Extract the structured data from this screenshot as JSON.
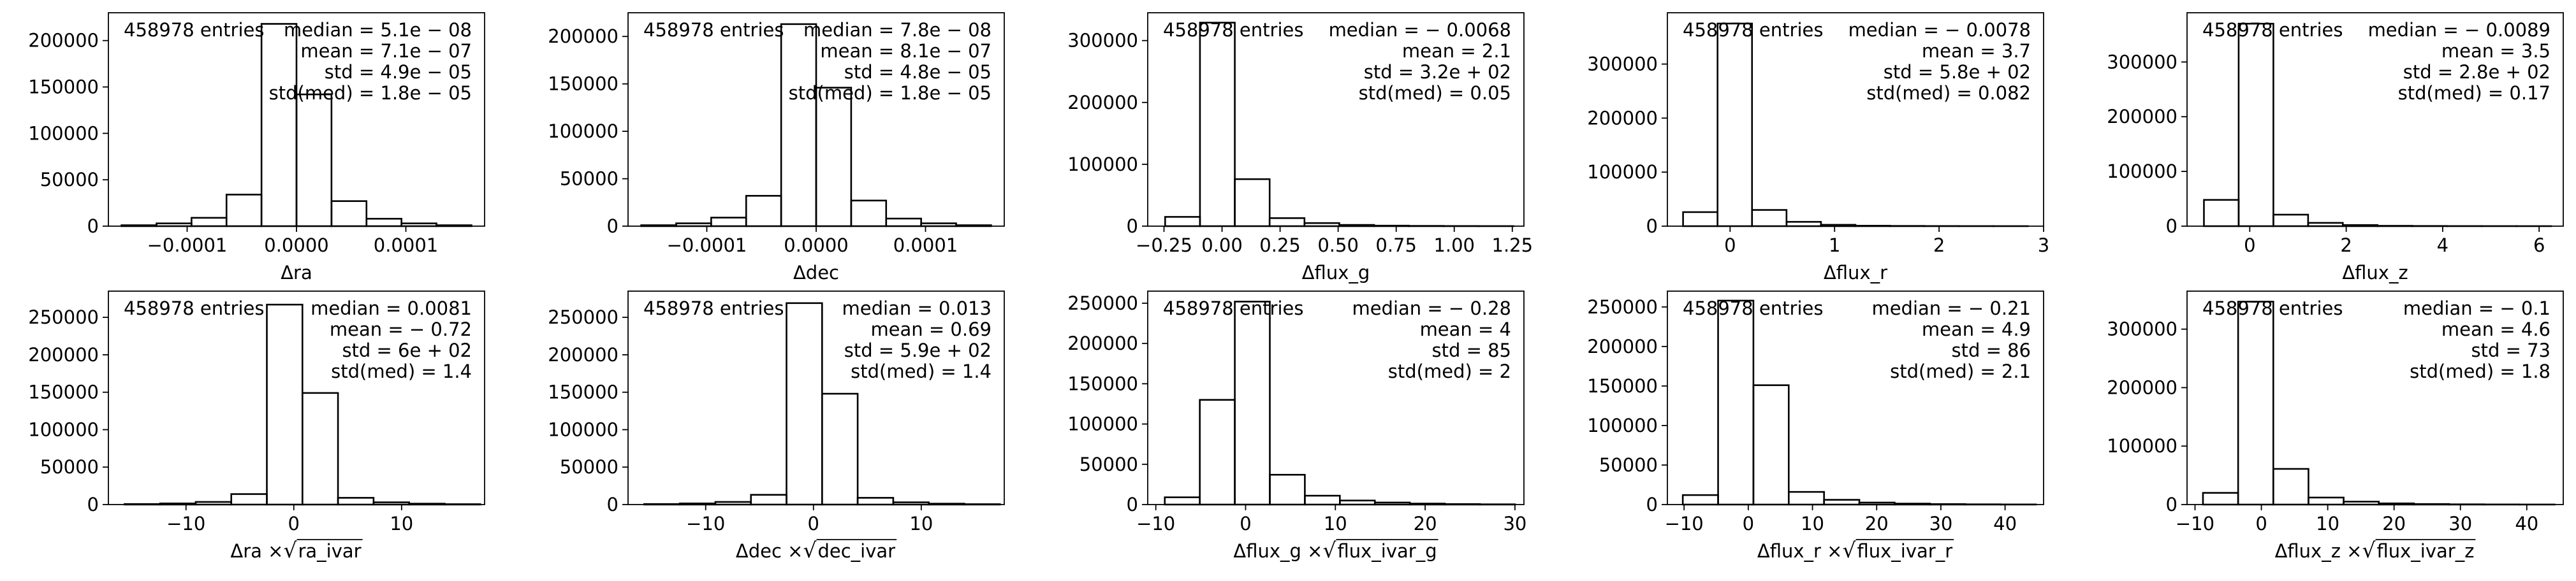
{
  "chart_data": [
    {
      "type": "histogram",
      "xlabel": "Δra",
      "xticks": [
        "−0.0001",
        "0.0000",
        "0.0001"
      ],
      "xtick_values": [
        -0.0001,
        0.0,
        0.0001
      ],
      "xlim": [
        -0.000172,
        0.000172
      ],
      "yticks": [
        "0",
        "50000",
        "100000",
        "150000",
        "200000"
      ],
      "ytick_values": [
        0,
        50000,
        100000,
        150000,
        200000
      ],
      "ylim": [
        0,
        230000
      ],
      "bin_edges": [
        -0.00016,
        -0.000128,
        -9.6e-05,
        -6.4e-05,
        -3.2e-05,
        0.0,
        3.2e-05,
        6.4e-05,
        9.6e-05,
        0.000128,
        0.00016
      ],
      "counts": [
        1000,
        3000,
        9000,
        34000,
        218000,
        142000,
        27000,
        8000,
        3000,
        1000
      ],
      "entries": "458978 entries",
      "stats": [
        "median = 5.1e − 08",
        "mean = 7.1e − 07",
        "std = 4.9e − 05",
        "std(med) = 1.8e − 05"
      ]
    },
    {
      "type": "histogram",
      "xlabel": "Δdec",
      "xticks": [
        "−0.0001",
        "0.0000",
        "0.0001"
      ],
      "xtick_values": [
        -0.0001,
        0.0,
        0.0001
      ],
      "xlim": [
        -0.000172,
        0.000172
      ],
      "yticks": [
        "0",
        "50000",
        "100000",
        "150000",
        "200000"
      ],
      "ytick_values": [
        0,
        50000,
        100000,
        150000,
        200000
      ],
      "ylim": [
        0,
        225000
      ],
      "bin_edges": [
        -0.00016,
        -0.000128,
        -9.6e-05,
        -6.4e-05,
        -3.2e-05,
        0.0,
        3.2e-05,
        6.4e-05,
        9.6e-05,
        0.000128,
        0.00016
      ],
      "counts": [
        1000,
        3000,
        9000,
        32000,
        213000,
        146000,
        27000,
        8000,
        3000,
        1000
      ],
      "entries": "458978 entries",
      "stats": [
        "median = 7.8e − 08",
        "mean = 8.1e − 07",
        "std = 4.8e − 05",
        "std(med) = 1.8e − 05"
      ]
    },
    {
      "type": "histogram",
      "xlabel": "Δflux_g",
      "xticks": [
        "−0.25",
        "0.00",
        "0.25",
        "0.50",
        "0.75",
        "1.00",
        "1.25"
      ],
      "xtick_values": [
        -0.25,
        0.0,
        0.25,
        0.5,
        0.75,
        1.0,
        1.25
      ],
      "xlim": [
        -0.32,
        1.3
      ],
      "yticks": [
        "0",
        "100000",
        "200000",
        "300000"
      ],
      "ytick_values": [
        0,
        100000,
        200000,
        300000
      ],
      "ylim": [
        0,
        345000
      ],
      "bin_edges": [
        -0.245,
        -0.095,
        0.055,
        0.205,
        0.355,
        0.505,
        0.655,
        0.805,
        0.955,
        1.105,
        1.255
      ],
      "counts": [
        15000,
        329000,
        76000,
        13000,
        5000,
        2000,
        800,
        400,
        200,
        100
      ],
      "entries": "458978 entries",
      "stats": [
        "median = − 0.0068",
        "mean = 2.1",
        "std = 3.2e + 02",
        "std(med) = 0.05"
      ]
    },
    {
      "type": "histogram",
      "xlabel": "Δflux_r",
      "xticks": [
        "0",
        "1",
        "2",
        "3"
      ],
      "xtick_values": [
        0,
        1,
        2,
        3
      ],
      "xlim": [
        -0.6,
        3.0
      ],
      "yticks": [
        "0",
        "100000",
        "200000",
        "300000"
      ],
      "ytick_values": [
        0,
        100000,
        200000,
        300000
      ],
      "ylim": [
        0,
        395000
      ],
      "bin_edges": [
        -0.45,
        -0.12,
        0.21,
        0.54,
        0.87,
        1.2,
        1.53,
        1.86,
        2.19,
        2.52,
        2.85
      ],
      "counts": [
        26000,
        375000,
        30000,
        8000,
        2500,
        800,
        400,
        200,
        100,
        50
      ],
      "entries": "458978 entries",
      "stats": [
        "median = − 0.0078",
        "mean = 3.7",
        "std = 5.8e + 02",
        "std(med) = 0.082"
      ]
    },
    {
      "type": "histogram",
      "xlabel": "Δflux_z",
      "xticks": [
        "0",
        "2",
        "4",
        "6"
      ],
      "xtick_values": [
        0,
        2,
        4,
        6
      ],
      "xlim": [
        -1.3,
        6.5
      ],
      "yticks": [
        "0",
        "100000",
        "200000",
        "300000"
      ],
      "ytick_values": [
        0,
        100000,
        200000,
        300000
      ],
      "ylim": [
        0,
        390000
      ],
      "bin_edges": [
        -0.95,
        -0.23,
        0.49,
        1.21,
        1.93,
        2.65,
        3.37,
        4.09,
        4.81,
        5.53,
        6.25
      ],
      "counts": [
        48000,
        370000,
        21000,
        6000,
        2000,
        600,
        300,
        150,
        80,
        40
      ],
      "entries": "458978 entries",
      "stats": [
        "median = − 0.0089",
        "mean = 3.5",
        "std = 2.8e + 02",
        "std(med) = 0.17"
      ]
    },
    {
      "type": "histogram",
      "xlabel": "Δra × √ra_ivar",
      "xticks": [
        "−10",
        "0",
        "10"
      ],
      "xtick_values": [
        -10,
        0,
        10
      ],
      "xlim": [
        -17.2,
        17.7
      ],
      "yticks": [
        "0",
        "50000",
        "100000",
        "150000",
        "200000",
        "250000"
      ],
      "ytick_values": [
        0,
        50000,
        100000,
        150000,
        200000,
        250000
      ],
      "ylim": [
        0,
        285000
      ],
      "bin_edges": [
        -15.7,
        -12.4,
        -9.1,
        -5.8,
        -2.5,
        0.8,
        4.1,
        7.4,
        10.7,
        14.0,
        17.3
      ],
      "counts": [
        700,
        1500,
        3500,
        14000,
        267000,
        149000,
        9000,
        3000,
        1200,
        500
      ],
      "entries": "458978 entries",
      "stats": [
        "median = 0.0081",
        "mean = − 0.72",
        "std = 6e + 02",
        "std(med) = 1.4"
      ]
    },
    {
      "type": "histogram",
      "xlabel": "Δdec × √dec_ivar",
      "xticks": [
        "−10",
        "0",
        "10"
      ],
      "xtick_values": [
        -10,
        0,
        10
      ],
      "xlim": [
        -17.2,
        17.7
      ],
      "yticks": [
        "0",
        "50000",
        "100000",
        "150000",
        "200000",
        "250000"
      ],
      "ytick_values": [
        0,
        50000,
        100000,
        150000,
        200000,
        250000
      ],
      "ylim": [
        0,
        285000
      ],
      "bin_edges": [
        -15.7,
        -12.4,
        -9.1,
        -5.8,
        -2.5,
        0.8,
        4.1,
        7.4,
        10.7,
        14.0,
        17.3
      ],
      "counts": [
        700,
        1500,
        3500,
        13000,
        269000,
        148000,
        9000,
        3000,
        1200,
        500
      ],
      "entries": "458978 entries",
      "stats": [
        "median = 0.013",
        "mean = 0.69",
        "std = 5.9e + 02",
        "std(med) = 1.4"
      ]
    },
    {
      "type": "histogram",
      "xlabel": "Δflux_g × √flux_ivar_g",
      "xticks": [
        "−10",
        "0",
        "10",
        "20",
        "30"
      ],
      "xtick_values": [
        -10,
        0,
        10,
        20,
        30
      ],
      "xlim": [
        -10.9,
        31.0
      ],
      "yticks": [
        "0",
        "50000",
        "100000",
        "150000",
        "200000",
        "250000"
      ],
      "ytick_values": [
        0,
        50000,
        100000,
        150000,
        200000,
        250000
      ],
      "ylim": [
        0,
        265000
      ],
      "bin_edges": [
        -9.0,
        -5.1,
        -1.2,
        2.7,
        6.6,
        10.5,
        14.4,
        18.3,
        22.2,
        26.1,
        30.0
      ],
      "counts": [
        9000,
        130000,
        252000,
        37000,
        11000,
        5000,
        2500,
        1200,
        600,
        300
      ],
      "entries": "458978 entries",
      "stats": [
        "median = − 0.28",
        "mean = 4",
        "std = 85",
        "std(med) = 2"
      ]
    },
    {
      "type": "histogram",
      "xlabel": "Δflux_r × √flux_ivar_r",
      "xticks": [
        "−10",
        "0",
        "10",
        "20",
        "30",
        "40"
      ],
      "xtick_values": [
        -10,
        0,
        10,
        20,
        30,
        40
      ],
      "xlim": [
        -12.6,
        46.0
      ],
      "yticks": [
        "0",
        "50000",
        "100000",
        "150000",
        "200000",
        "250000"
      ],
      "ytick_values": [
        0,
        50000,
        100000,
        150000,
        200000,
        250000
      ],
      "ylim": [
        0,
        270000
      ],
      "bin_edges": [
        -10.2,
        -4.7,
        0.8,
        6.3,
        11.8,
        17.3,
        22.8,
        28.3,
        33.8,
        39.3,
        44.8
      ],
      "counts": [
        12000,
        258000,
        151000,
        16000,
        6000,
        2500,
        1200,
        600,
        300,
        150
      ],
      "entries": "458978 entries",
      "stats": [
        "median = − 0.21",
        "mean = 4.9",
        "std = 86",
        "std(med) = 2.1"
      ]
    },
    {
      "type": "histogram",
      "xlabel": "Δflux_z × √flux_ivar_z",
      "xticks": [
        "−10",
        "0",
        "10",
        "20",
        "30",
        "40"
      ],
      "xtick_values": [
        -10,
        0,
        10,
        20,
        30,
        40
      ],
      "xlim": [
        -11.2,
        45.5
      ],
      "yticks": [
        "0",
        "100000",
        "200000",
        "300000"
      ],
      "ytick_values": [
        0,
        100000,
        200000,
        300000
      ],
      "ylim": [
        0,
        365000
      ],
      "bin_edges": [
        -8.8,
        -3.5,
        1.8,
        7.1,
        12.4,
        17.7,
        23.0,
        28.3,
        33.6,
        38.9,
        44.2
      ],
      "counts": [
        20000,
        347000,
        61000,
        12000,
        5000,
        2000,
        900,
        400,
        200,
        100
      ],
      "entries": "458978 entries",
      "stats": [
        "median = − 0.1",
        "mean = 4.6",
        "std = 73",
        "std(med) = 1.8"
      ]
    }
  ]
}
